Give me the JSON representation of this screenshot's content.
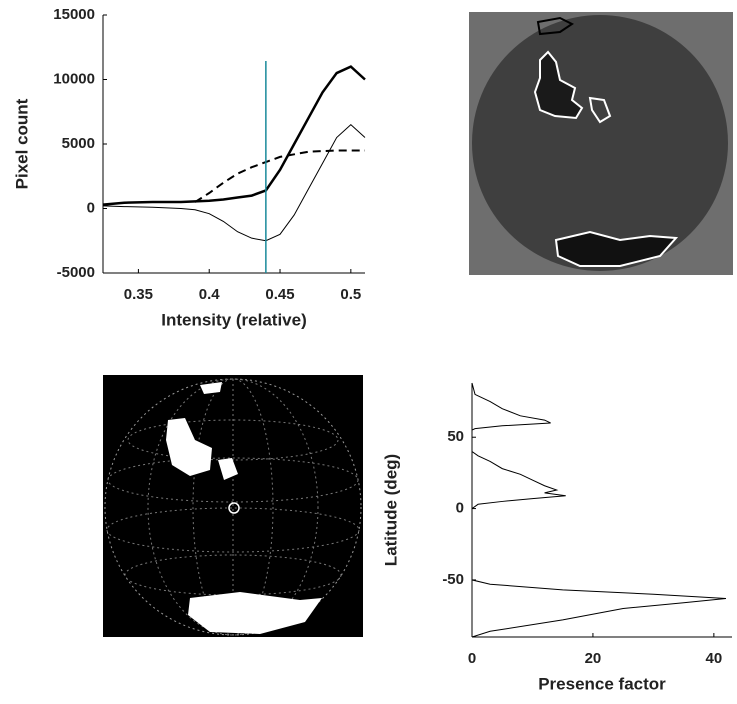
{
  "chart_data": [
    {
      "type": "line",
      "xlabel": "Intensity (relative)",
      "ylabel": "Pixel count",
      "xlim": [
        0.325,
        0.51
      ],
      "xticks": [
        0.35,
        0.4,
        0.45,
        0.5
      ],
      "ylim": [
        -5000,
        15000
      ],
      "yticks": [
        -5000,
        0,
        5000,
        10000,
        15000
      ],
      "x": [
        0.325,
        0.34,
        0.36,
        0.38,
        0.39,
        0.4,
        0.41,
        0.42,
        0.43,
        0.44,
        0.45,
        0.46,
        0.47,
        0.48,
        0.49,
        0.5,
        0.51
      ],
      "series": [
        {
          "color": "#000000",
          "linewidth": 2.5,
          "dash": "none",
          "values": [
            300,
            450,
            500,
            500,
            550,
            600,
            700,
            850,
            1000,
            1400,
            3000,
            5000,
            7000,
            9000,
            10500,
            11000,
            10000
          ]
        },
        {
          "color": "#000000",
          "linewidth": 1,
          "dash": "none",
          "values": [
            200,
            150,
            100,
            0,
            -100,
            -400,
            -1000,
            -1800,
            -2300,
            -2500,
            -2000,
            -500,
            1500,
            3500,
            5500,
            6500,
            5500
          ]
        },
        {
          "color": "#000000",
          "linewidth": 2,
          "dash": "8 5",
          "values": [
            null,
            null,
            null,
            null,
            500,
            1200,
            2000,
            2700,
            3200,
            3600,
            4000,
            4200,
            4400,
            4450,
            4500,
            4500,
            4500
          ]
        }
      ],
      "vline": {
        "x": 0.44,
        "color": "#1a8a9a"
      }
    },
    {
      "type": "line",
      "xlabel": "Presence factor",
      "ylabel": "Latitude (deg)",
      "xlim": [
        0,
        43
      ],
      "xticks": [
        0,
        20,
        40
      ],
      "ylim": [
        -90,
        88
      ],
      "yticks": [
        -50,
        0,
        50
      ],
      "series": [
        {
          "color": "#000000",
          "linewidth": 1,
          "dash": "none",
          "x": [
            0,
            0.5,
            3,
            5,
            8,
            12,
            13,
            5,
            0.5,
            0,
            0,
            1,
            3,
            5,
            8,
            10,
            12,
            14,
            12,
            15.5,
            10,
            5,
            1,
            0,
            0,
            3,
            15,
            30,
            42,
            35,
            25,
            15,
            3,
            0
          ],
          "values": [
            88,
            80,
            75,
            70,
            65,
            62,
            60,
            58,
            56,
            55,
            40,
            37,
            33,
            28,
            24,
            20,
            16,
            13,
            11,
            9,
            7,
            5,
            3,
            0,
            -50,
            -53,
            -57,
            -60,
            -63,
            -66,
            -70,
            -78,
            -86,
            -90
          ]
        }
      ]
    }
  ]
}
